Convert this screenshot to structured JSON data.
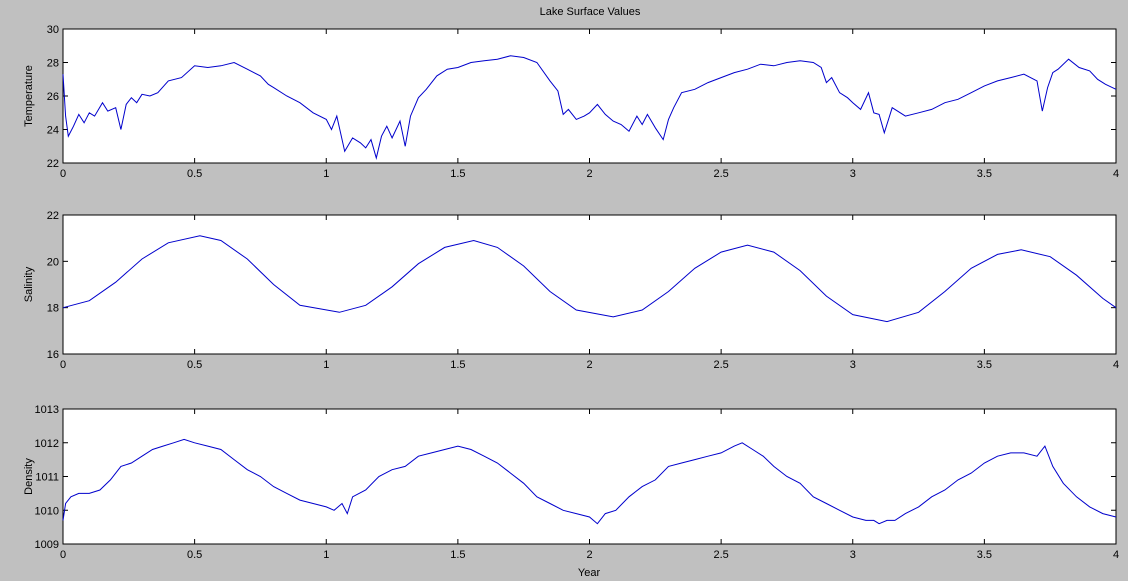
{
  "figure": {
    "title": "Lake Surface Values",
    "xlabel": "Year",
    "background": "#c0c0c0",
    "line_color": "#0000cc"
  },
  "chart_data": [
    {
      "type": "line",
      "ylabel": "Temperature",
      "xlim": [
        0,
        4
      ],
      "ylim": [
        22,
        30
      ],
      "xticks": [
        0,
        0.5,
        1,
        1.5,
        2,
        2.5,
        3,
        3.5,
        4
      ],
      "xtick_labels": [
        "0",
        "0.5",
        "1",
        "1.5",
        "2",
        "2.5",
        "3",
        "3.5",
        "4"
      ],
      "yticks": [
        22,
        24,
        26,
        28,
        30
      ],
      "ytick_labels": [
        "22",
        "24",
        "26",
        "28",
        "30"
      ],
      "series": [
        {
          "name": "Temperature",
          "x": [
            0,
            0.01,
            0.02,
            0.04,
            0.06,
            0.08,
            0.1,
            0.12,
            0.15,
            0.17,
            0.2,
            0.22,
            0.24,
            0.26,
            0.28,
            0.3,
            0.33,
            0.36,
            0.4,
            0.45,
            0.5,
            0.55,
            0.6,
            0.65,
            0.7,
            0.75,
            0.78,
            0.8,
            0.85,
            0.9,
            0.95,
            1.0,
            1.02,
            1.04,
            1.07,
            1.1,
            1.13,
            1.15,
            1.17,
            1.19,
            1.21,
            1.23,
            1.25,
            1.28,
            1.3,
            1.32,
            1.35,
            1.38,
            1.42,
            1.46,
            1.5,
            1.55,
            1.6,
            1.65,
            1.7,
            1.75,
            1.8,
            1.85,
            1.88,
            1.9,
            1.92,
            1.95,
            1.98,
            2.0,
            2.03,
            2.06,
            2.09,
            2.12,
            2.15,
            2.18,
            2.2,
            2.22,
            2.25,
            2.28,
            2.3,
            2.32,
            2.35,
            2.4,
            2.45,
            2.5,
            2.55,
            2.6,
            2.65,
            2.7,
            2.75,
            2.8,
            2.85,
            2.88,
            2.9,
            2.92,
            2.95,
            2.98,
            3.0,
            3.03,
            3.06,
            3.08,
            3.1,
            3.12,
            3.15,
            3.2,
            3.25,
            3.3,
            3.35,
            3.4,
            3.45,
            3.5,
            3.55,
            3.6,
            3.65,
            3.7,
            3.72,
            3.74,
            3.76,
            3.78,
            3.82,
            3.86,
            3.9,
            3.93,
            3.96,
            4.0
          ],
          "y": [
            27.3,
            24.8,
            23.6,
            24.2,
            24.9,
            24.4,
            25.0,
            24.8,
            25.6,
            25.1,
            25.3,
            24.0,
            25.5,
            25.9,
            25.6,
            26.1,
            26.0,
            26.2,
            26.9,
            27.1,
            27.8,
            27.7,
            27.8,
            28.0,
            27.6,
            27.2,
            26.7,
            26.5,
            26.0,
            25.6,
            25.0,
            24.6,
            24.0,
            24.8,
            22.7,
            23.5,
            23.2,
            22.9,
            23.4,
            22.3,
            23.6,
            24.2,
            23.5,
            24.5,
            23.0,
            24.8,
            25.9,
            26.4,
            27.2,
            27.6,
            27.7,
            28.0,
            28.1,
            28.2,
            28.4,
            28.3,
            28.0,
            26.9,
            26.3,
            24.9,
            25.2,
            24.6,
            24.8,
            25.0,
            25.5,
            24.9,
            24.5,
            24.3,
            23.9,
            24.8,
            24.3,
            24.9,
            24.1,
            23.4,
            24.6,
            25.3,
            26.2,
            26.4,
            26.8,
            27.1,
            27.4,
            27.6,
            27.9,
            27.8,
            28.0,
            28.1,
            28.0,
            27.7,
            26.8,
            27.1,
            26.2,
            25.9,
            25.6,
            25.2,
            26.2,
            25.0,
            24.9,
            23.8,
            25.3,
            24.8,
            25.0,
            25.2,
            25.6,
            25.8,
            26.2,
            26.6,
            26.9,
            27.1,
            27.3,
            26.9,
            25.1,
            26.5,
            27.4,
            27.6,
            28.2,
            27.7,
            27.5,
            27.0,
            26.7,
            26.4
          ]
        }
      ]
    },
    {
      "type": "line",
      "ylabel": "Salinity",
      "xlim": [
        0,
        4
      ],
      "ylim": [
        16,
        22
      ],
      "xticks": [
        0,
        0.5,
        1,
        1.5,
        2,
        2.5,
        3,
        3.5,
        4
      ],
      "xtick_labels": [
        "0",
        "0.5",
        "1",
        "1.5",
        "2",
        "2.5",
        "3",
        "3.5",
        "4"
      ],
      "yticks": [
        16,
        18,
        20,
        22
      ],
      "ytick_labels": [
        "16",
        "18",
        "20",
        "22"
      ],
      "series": [
        {
          "name": "Salinity",
          "x": [
            0,
            0.1,
            0.2,
            0.3,
            0.4,
            0.52,
            0.6,
            0.7,
            0.8,
            0.9,
            1.05,
            1.15,
            1.25,
            1.35,
            1.45,
            1.56,
            1.65,
            1.75,
            1.85,
            1.95,
            2.09,
            2.2,
            2.3,
            2.4,
            2.5,
            2.6,
            2.7,
            2.8,
            2.9,
            3.0,
            3.13,
            3.25,
            3.35,
            3.45,
            3.55,
            3.64,
            3.75,
            3.85,
            3.95,
            4.0
          ],
          "y": [
            18.0,
            18.3,
            19.1,
            20.1,
            20.8,
            21.1,
            20.9,
            20.1,
            19.0,
            18.1,
            17.8,
            18.1,
            18.9,
            19.9,
            20.6,
            20.9,
            20.6,
            19.8,
            18.7,
            17.9,
            17.6,
            17.9,
            18.7,
            19.7,
            20.4,
            20.7,
            20.4,
            19.6,
            18.5,
            17.7,
            17.4,
            17.8,
            18.7,
            19.7,
            20.3,
            20.5,
            20.2,
            19.4,
            18.4,
            18.0
          ]
        }
      ]
    },
    {
      "type": "line",
      "ylabel": "Density",
      "xlim": [
        0,
        4
      ],
      "ylim": [
        1009,
        1013
      ],
      "xticks": [
        0,
        0.5,
        1,
        1.5,
        2,
        2.5,
        3,
        3.5,
        4
      ],
      "xtick_labels": [
        "0",
        "0.5",
        "1",
        "1.5",
        "2",
        "2.5",
        "3",
        "3.5",
        "4"
      ],
      "yticks": [
        1009,
        1010,
        1011,
        1012,
        1013
      ],
      "ytick_labels": [
        "1009",
        "1010",
        "1011",
        "1012",
        "1013"
      ],
      "series": [
        {
          "name": "Density",
          "x": [
            0,
            0.01,
            0.03,
            0.06,
            0.1,
            0.14,
            0.18,
            0.22,
            0.26,
            0.3,
            0.34,
            0.38,
            0.42,
            0.46,
            0.5,
            0.55,
            0.6,
            0.65,
            0.7,
            0.75,
            0.8,
            0.85,
            0.9,
            0.95,
            1.0,
            1.03,
            1.06,
            1.08,
            1.1,
            1.15,
            1.2,
            1.25,
            1.3,
            1.35,
            1.4,
            1.45,
            1.5,
            1.55,
            1.6,
            1.65,
            1.7,
            1.75,
            1.8,
            1.85,
            1.9,
            1.95,
            2.0,
            2.03,
            2.06,
            2.1,
            2.15,
            2.2,
            2.25,
            2.3,
            2.35,
            2.4,
            2.45,
            2.5,
            2.55,
            2.58,
            2.62,
            2.66,
            2.7,
            2.75,
            2.8,
            2.85,
            2.9,
            2.95,
            3.0,
            3.05,
            3.08,
            3.1,
            3.13,
            3.16,
            3.2,
            3.25,
            3.3,
            3.35,
            3.4,
            3.45,
            3.5,
            3.55,
            3.6,
            3.65,
            3.7,
            3.73,
            3.76,
            3.8,
            3.85,
            3.9,
            3.95,
            4.0
          ],
          "y": [
            1009.7,
            1010.2,
            1010.4,
            1010.5,
            1010.5,
            1010.6,
            1010.9,
            1011.3,
            1011.4,
            1011.6,
            1011.8,
            1011.9,
            1012.0,
            1012.1,
            1012.0,
            1011.9,
            1011.8,
            1011.5,
            1011.2,
            1011.0,
            1010.7,
            1010.5,
            1010.3,
            1010.2,
            1010.1,
            1010.0,
            1010.2,
            1009.9,
            1010.4,
            1010.6,
            1011.0,
            1011.2,
            1011.3,
            1011.6,
            1011.7,
            1011.8,
            1011.9,
            1011.8,
            1011.6,
            1011.4,
            1011.1,
            1010.8,
            1010.4,
            1010.2,
            1010.0,
            1009.9,
            1009.8,
            1009.6,
            1009.9,
            1010.0,
            1010.4,
            1010.7,
            1010.9,
            1011.3,
            1011.4,
            1011.5,
            1011.6,
            1011.7,
            1011.9,
            1012.0,
            1011.8,
            1011.6,
            1011.3,
            1011.0,
            1010.8,
            1010.4,
            1010.2,
            1010.0,
            1009.8,
            1009.7,
            1009.7,
            1009.6,
            1009.7,
            1009.7,
            1009.9,
            1010.1,
            1010.4,
            1010.6,
            1010.9,
            1011.1,
            1011.4,
            1011.6,
            1011.7,
            1011.7,
            1011.6,
            1011.9,
            1011.3,
            1010.8,
            1010.4,
            1010.1,
            1009.9,
            1009.8
          ]
        }
      ]
    }
  ]
}
